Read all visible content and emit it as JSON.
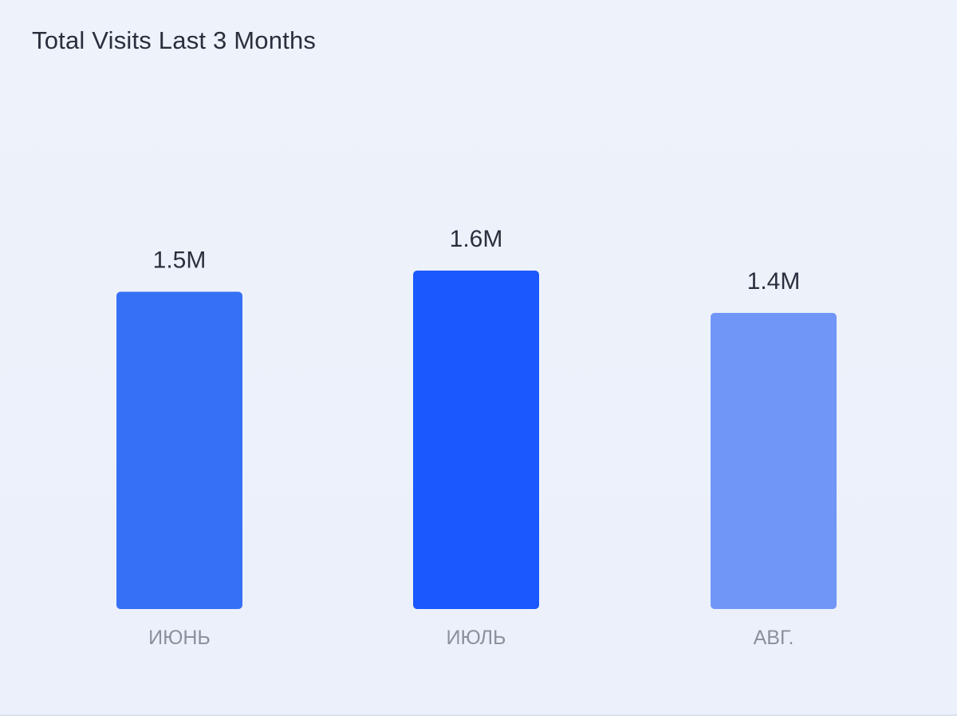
{
  "card": {
    "title": "Total Visits Last 3 Months"
  },
  "chart_data": {
    "type": "bar",
    "title": "Total Visits Last 3 Months",
    "categories": [
      "ИЮНЬ",
      "ИЮЛЬ",
      "АВГ."
    ],
    "values": [
      1.5,
      1.6,
      1.4
    ],
    "value_labels": [
      "1.5M",
      "1.6M",
      "1.4M"
    ],
    "bar_colors": [
      "#3670f5",
      "#1b58fd",
      "#7097f8"
    ],
    "ylim": [
      0,
      2.1
    ],
    "grid": false,
    "legend": "none"
  }
}
